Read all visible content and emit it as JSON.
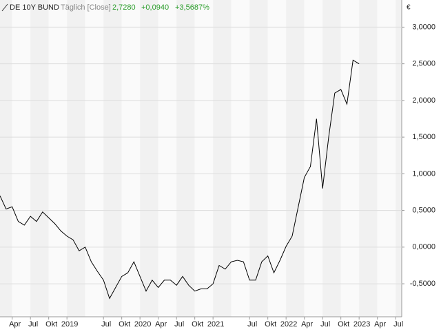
{
  "header": {
    "name": "DE 10Y BUND",
    "mode": "Täglich [Close]",
    "last": "2,7280",
    "change": "+0,0940",
    "change_pct": "+3,5687%"
  },
  "chart_data": {
    "type": "line",
    "y_label": "€",
    "xlim": [
      "2018-02",
      "2023-08"
    ],
    "xticks": [
      {
        "value": "2018-04",
        "label": "Apr"
      },
      {
        "value": "2018-07",
        "label": "Jul"
      },
      {
        "value": "2018-10",
        "label": "Okt"
      },
      {
        "value": "2019-01",
        "label": "2019"
      },
      {
        "value": "2019-07",
        "label": "Jul"
      },
      {
        "value": "2019-10",
        "label": "Okt"
      },
      {
        "value": "2020-01",
        "label": "2020"
      },
      {
        "value": "2020-04",
        "label": "Apr"
      },
      {
        "value": "2020-07",
        "label": "Jul"
      },
      {
        "value": "2020-10",
        "label": "Okt"
      },
      {
        "value": "2021-01",
        "label": "2021"
      },
      {
        "value": "2021-07",
        "label": "Jul"
      },
      {
        "value": "2021-10",
        "label": "Okt"
      },
      {
        "value": "2022-01",
        "label": "2022"
      },
      {
        "value": "2022-04",
        "label": "Apr"
      },
      {
        "value": "2022-07",
        "label": "Jul"
      },
      {
        "value": "2022-10",
        "label": "Okt"
      },
      {
        "value": "2023-01",
        "label": "2023"
      },
      {
        "value": "2023-04",
        "label": "Apr"
      },
      {
        "value": "2023-07",
        "label": "Jul"
      }
    ],
    "ylim": [
      -0.95,
      3.37
    ],
    "yticks": [
      {
        "value": -0.5,
        "label": "-0,5000"
      },
      {
        "value": 0,
        "label": "0,0000"
      },
      {
        "value": 0.5,
        "label": "0,5000"
      },
      {
        "value": 1,
        "label": "1,0000"
      },
      {
        "value": 1.5,
        "label": "1,5000"
      },
      {
        "value": 2,
        "label": "2,0000"
      },
      {
        "value": 2.5,
        "label": "2,5000"
      },
      {
        "value": 3,
        "label": "3,0000"
      }
    ],
    "grid": true,
    "series": [
      {
        "name": "DE 10Y BUND",
        "color": "#000000",
        "x": [
          "2018-02",
          "2018-03",
          "2018-04",
          "2018-05",
          "2018-06",
          "2018-07",
          "2018-08",
          "2018-09",
          "2018-10",
          "2018-11",
          "2018-12",
          "2019-01",
          "2019-02",
          "2019-03",
          "2019-04",
          "2019-05",
          "2019-06",
          "2019-07",
          "2019-08",
          "2019-09",
          "2019-10",
          "2019-11",
          "2019-12",
          "2020-01",
          "2020-02",
          "2020-03",
          "2020-04",
          "2020-05",
          "2020-06",
          "2020-07",
          "2020-08",
          "2020-09",
          "2020-10",
          "2020-11",
          "2020-12",
          "2021-01",
          "2021-02",
          "2021-03",
          "2021-04",
          "2021-05",
          "2021-06",
          "2021-07",
          "2021-08",
          "2021-09",
          "2021-10",
          "2021-11",
          "2021-12",
          "2022-01",
          "2022-02",
          "2022-03",
          "2022-04",
          "2022-05",
          "2022-06",
          "2022-07",
          "2022-08",
          "2022-09",
          "2022-10",
          "2022-11",
          "2022-12",
          "2023-01"
        ],
        "values": [
          0.7,
          0.52,
          0.55,
          0.35,
          0.3,
          0.42,
          0.35,
          0.48,
          0.4,
          0.32,
          0.22,
          0.15,
          0.1,
          -0.05,
          0.0,
          -0.2,
          -0.33,
          -0.45,
          -0.7,
          -0.55,
          -0.4,
          -0.35,
          -0.2,
          -0.4,
          -0.6,
          -0.45,
          -0.55,
          -0.45,
          -0.45,
          -0.52,
          -0.4,
          -0.52,
          -0.6,
          -0.57,
          -0.57,
          -0.5,
          -0.25,
          -0.3,
          -0.2,
          -0.18,
          -0.2,
          -0.45,
          -0.45,
          -0.2,
          -0.12,
          -0.35,
          -0.18,
          0.01,
          0.15,
          0.55,
          0.95,
          1.1,
          1.75,
          0.8,
          1.5,
          2.1,
          2.15,
          1.95,
          2.55,
          2.5
        ]
      }
    ]
  }
}
